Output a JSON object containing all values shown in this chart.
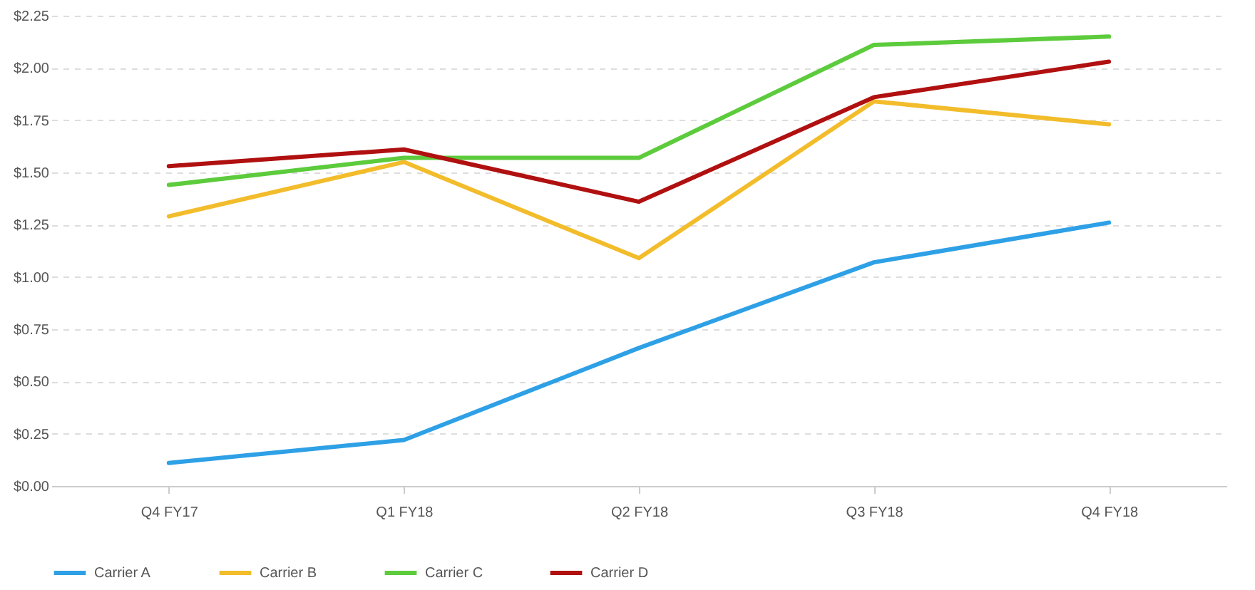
{
  "chart_data": {
    "type": "line",
    "categories": [
      "Q4 FY17",
      "Q1 FY18",
      "Q2 FY18",
      "Q3 FY18",
      "Q4 FY18"
    ],
    "series": [
      {
        "name": "Carrier A",
        "color": "#2ea0e6",
        "values": [
          0.11,
          0.22,
          0.66,
          1.07,
          1.26
        ]
      },
      {
        "name": "Carrier B",
        "color": "#f2bc2b",
        "values": [
          1.29,
          1.55,
          1.09,
          1.84,
          1.73
        ]
      },
      {
        "name": "Carrier C",
        "color": "#5ccb3c",
        "values": [
          1.44,
          1.57,
          1.57,
          2.11,
          2.15
        ]
      },
      {
        "name": "Carrier D",
        "color": "#b01010",
        "values": [
          1.53,
          1.61,
          1.36,
          1.86,
          2.03
        ]
      }
    ],
    "ylim": [
      0,
      2.25
    ],
    "yticks": [
      {
        "value": 0,
        "label": "$0.00"
      },
      {
        "value": 0.25,
        "label": "$0.25"
      },
      {
        "value": 0.5,
        "label": "$0.50"
      },
      {
        "value": 0.75,
        "label": "$0.75"
      },
      {
        "value": 1,
        "label": "$1.00"
      },
      {
        "value": 1.25,
        "label": "$1.25"
      },
      {
        "value": 1.5,
        "label": "$1.50"
      },
      {
        "value": 1.75,
        "label": "$1.75"
      },
      {
        "value": 2,
        "label": "$2.00"
      },
      {
        "value": 2.25,
        "label": "$2.25"
      }
    ],
    "grid": "y",
    "legend": "bottom",
    "marker": "none",
    "line_style": "solid"
  }
}
